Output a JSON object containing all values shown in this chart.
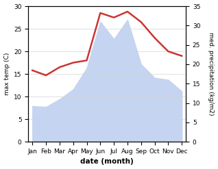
{
  "months": [
    "Jan",
    "Feb",
    "Mar",
    "Apr",
    "May",
    "Jun",
    "Jul",
    "Aug",
    "Sep",
    "Oct",
    "Nov",
    "Dec"
  ],
  "max_temp": [
    15.8,
    14.7,
    16.5,
    17.5,
    18.0,
    28.5,
    27.5,
    28.8,
    26.5,
    23.0,
    20.0,
    19.0
  ],
  "precipitation": [
    9.2,
    9.0,
    11.0,
    13.5,
    19.0,
    31.0,
    26.5,
    31.5,
    20.0,
    16.5,
    16.0,
    13.0
  ],
  "temp_color": "#cc3333",
  "precip_fill_color": "#c5d4f0",
  "background_color": "#ffffff",
  "temp_ylim": [
    0,
    30
  ],
  "precip_ylim": [
    0,
    35
  ],
  "temp_yticks": [
    0,
    5,
    10,
    15,
    20,
    25,
    30
  ],
  "precip_yticks": [
    0,
    5,
    10,
    15,
    20,
    25,
    30,
    35
  ],
  "xlabel": "date (month)",
  "ylabel_left": "max temp (C)",
  "ylabel_right": "med. precipitation (kg/m2)",
  "label_fontsize": 7,
  "tick_fontsize": 6.5
}
